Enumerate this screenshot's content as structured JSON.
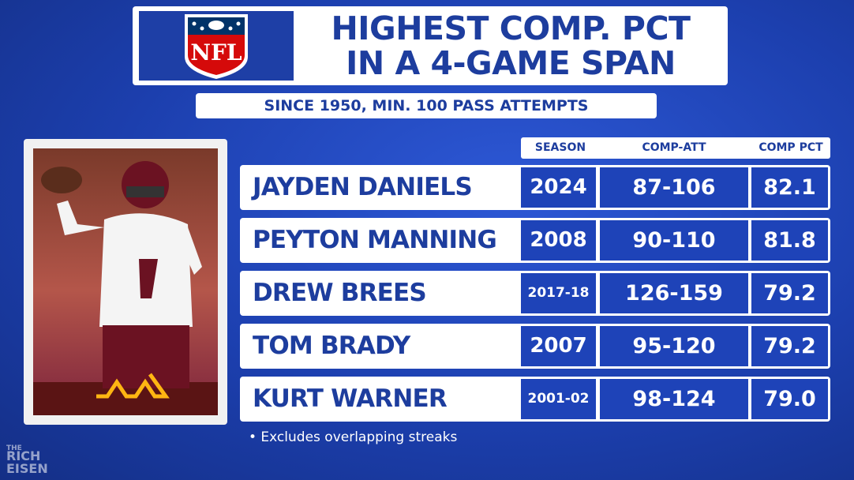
{
  "header": {
    "logo": "NFL",
    "title_lines": [
      "HIGHEST COMP. PCT",
      "IN A 4-GAME SPAN"
    ],
    "subtitle": "SINCE 1950, MIN. 100 PASS ATTEMPTS"
  },
  "table": {
    "columns": [
      "SEASON",
      "COMP-ATT",
      "COMP PCT"
    ],
    "rows": [
      [
        "JAYDEN DANIELS",
        "2024",
        "87-106",
        "82.1"
      ],
      [
        "PEYTON MANNING",
        "2008",
        "90-110",
        "81.8"
      ],
      [
        "DREW BREES",
        "2017-18",
        "126-159",
        "79.2"
      ],
      [
        "TOM BRADY",
        "2007",
        "95-120",
        "79.2"
      ],
      [
        "KURT WARNER",
        "2001-02",
        "98-124",
        "79.0"
      ]
    ]
  },
  "footnote": "• Excludes overlapping streaks",
  "watermark": [
    "THE",
    "RICH",
    "EISEN"
  ]
}
